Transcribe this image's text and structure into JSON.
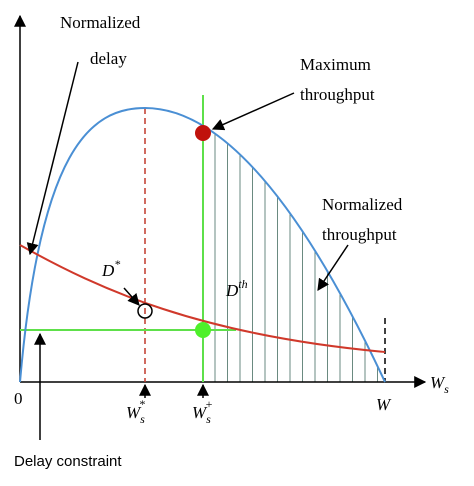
{
  "labels": {
    "normalized_delay": [
      "Normalized",
      "delay"
    ],
    "maximum_throughput": [
      "Maximum",
      "throughput"
    ],
    "normalized_throughput": [
      "Normalized",
      "throughput"
    ],
    "d_star": {
      "main": "D",
      "sup": "*"
    },
    "d_th": {
      "main": "D",
      "sup": "th"
    },
    "x_axis": {
      "main": "W",
      "sub": "s"
    },
    "origin": "0",
    "ws_star": {
      "main": "W",
      "sub": "s",
      "sup": "*"
    },
    "ws_plus": {
      "main": "W",
      "sub": "s",
      "sup": "+"
    },
    "w": "W",
    "delay_constraint": "Delay constraint"
  }
}
